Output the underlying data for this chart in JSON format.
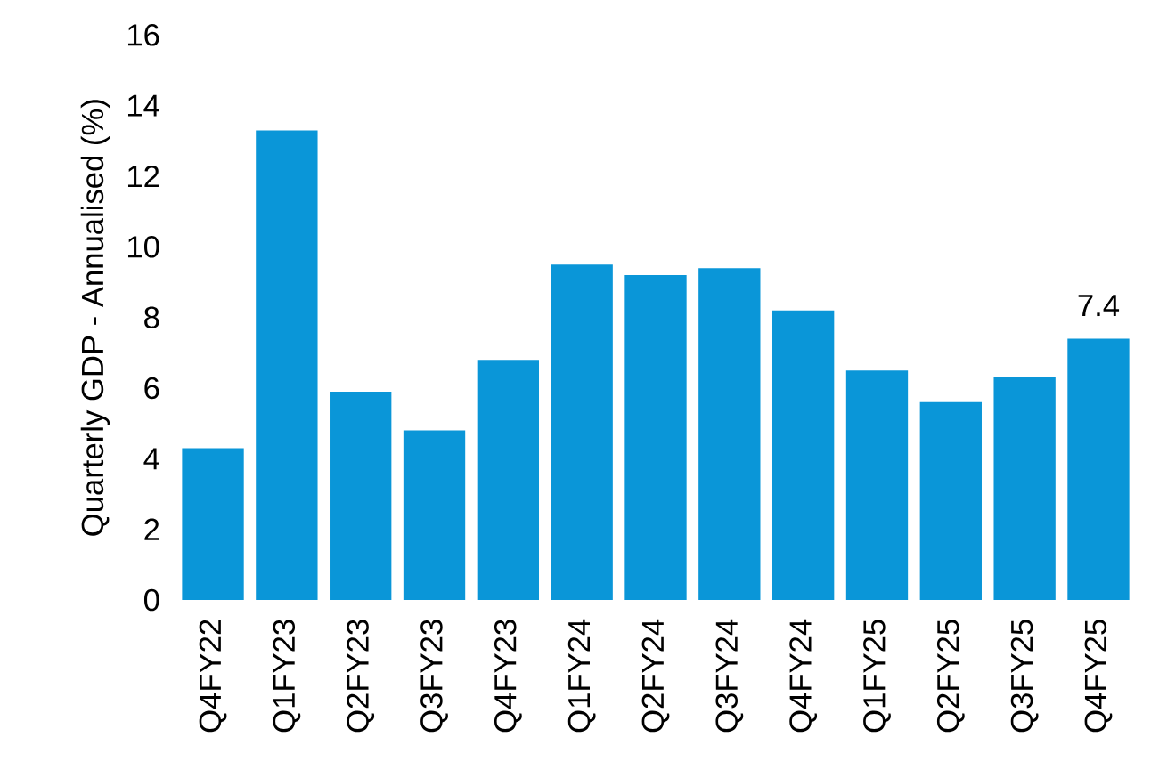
{
  "chart_data": {
    "type": "bar",
    "ylabel": "Quarterly GDP - Annualised (%)",
    "categories": [
      "Q4FY22",
      "Q1FY23",
      "Q2FY23",
      "Q3FY23",
      "Q4FY23",
      "Q1FY24",
      "Q2FY24",
      "Q3FY24",
      "Q4FY24",
      "Q1FY25",
      "Q2FY25",
      "Q3FY25",
      "Q4FY25"
    ],
    "values": [
      4.3,
      13.3,
      5.9,
      4.8,
      6.8,
      9.5,
      9.2,
      9.4,
      8.2,
      6.5,
      5.6,
      6.3,
      7.4
    ],
    "value_labels": [
      null,
      null,
      null,
      null,
      null,
      null,
      null,
      null,
      null,
      null,
      null,
      null,
      "7.4"
    ],
    "color": "#0a96d8",
    "ylim": [
      0,
      16
    ],
    "yticks": [
      0,
      2,
      4,
      6,
      8,
      10,
      12,
      14,
      16
    ]
  }
}
